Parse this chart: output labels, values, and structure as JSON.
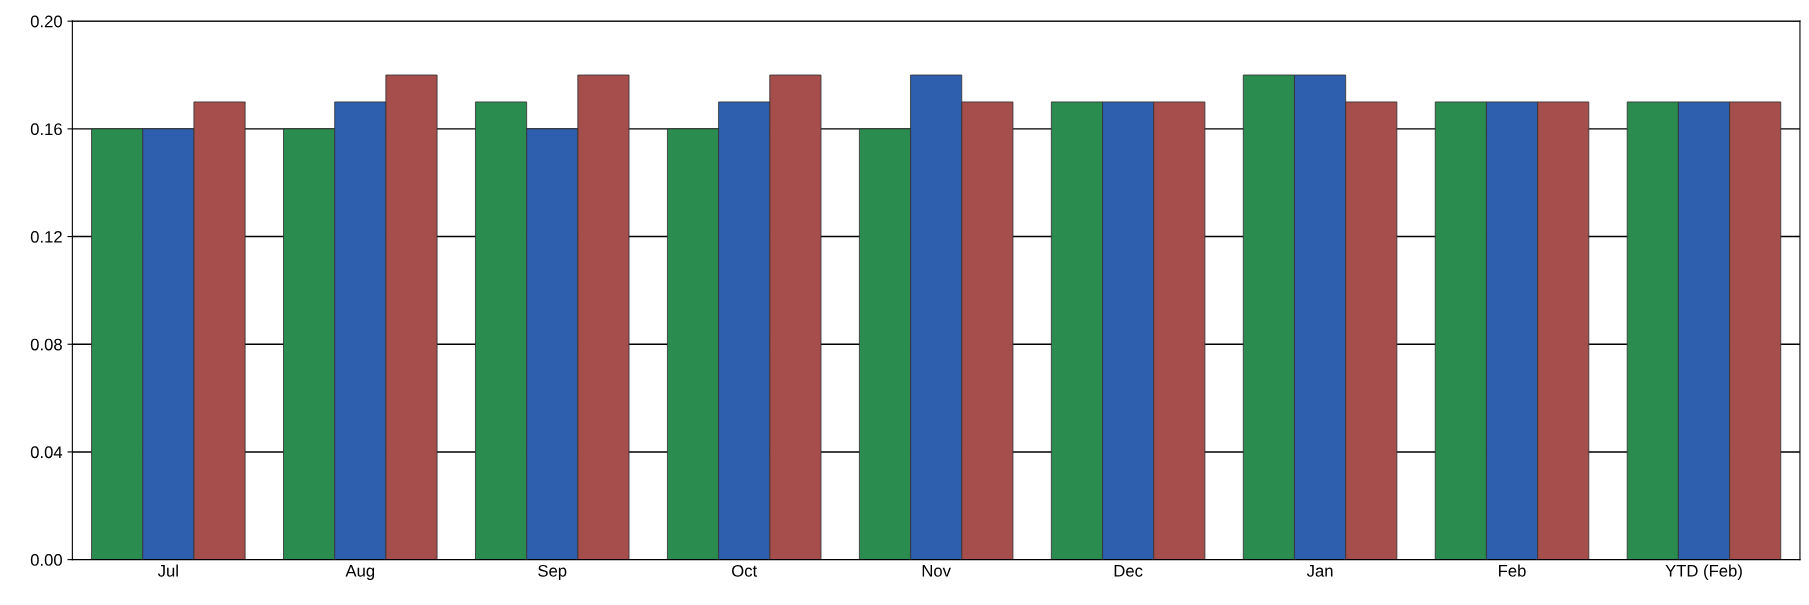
{
  "chart_data": {
    "type": "bar",
    "categories": [
      "Jul",
      "Aug",
      "Sep",
      "Oct",
      "Nov",
      "Dec",
      "Jan",
      "Feb",
      "YTD (Feb)"
    ],
    "series": [
      {
        "color": "#2a8c4e",
        "values": [
          0.16,
          0.16,
          0.17,
          0.16,
          0.16,
          0.17,
          0.18,
          0.17,
          0.17
        ]
      },
      {
        "color": "#2d5fae",
        "values": [
          0.16,
          0.17,
          0.16,
          0.17,
          0.18,
          0.17,
          0.18,
          0.17,
          0.17
        ]
      },
      {
        "color": "#a54e4b",
        "values": [
          0.17,
          0.18,
          0.18,
          0.18,
          0.17,
          0.17,
          0.17,
          0.17,
          0.17
        ]
      }
    ],
    "ylim": [
      0,
      0.2
    ],
    "yticks": [
      {
        "value": 0,
        "label": "0.00"
      },
      {
        "value": 0.04,
        "label": "0.04"
      },
      {
        "value": 0.08,
        "label": "0.08"
      },
      {
        "value": 0.12,
        "label": "0.12"
      },
      {
        "value": 0.16,
        "label": "0.16"
      },
      {
        "value": 0.2,
        "label": "0.20"
      }
    ],
    "grid": "y"
  }
}
